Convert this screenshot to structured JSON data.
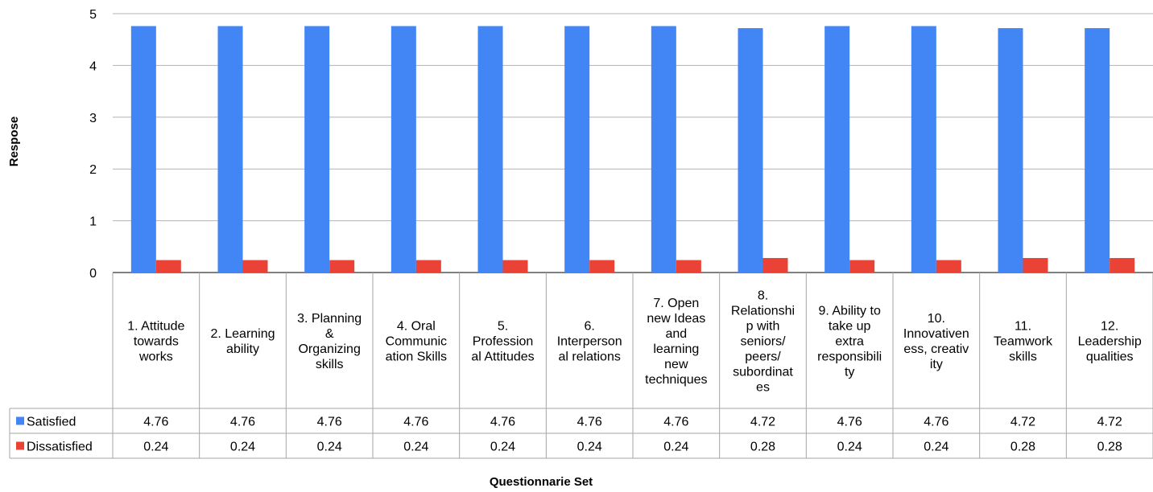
{
  "chart_data": {
    "type": "bar",
    "title": "",
    "xlabel": "Questionnarie Set",
    "ylabel": "Respose",
    "ylim": [
      0,
      5
    ],
    "yticks": [
      0,
      1,
      2,
      3,
      4,
      5
    ],
    "grid": true,
    "legend": "data-table-left",
    "categories": [
      "1. Attitude towards works",
      "2. Learning ability",
      "3. Planning & Organizing skills",
      "4. Oral Communication Skills",
      "5. Professional Attitudes",
      "6. Interpersonal relations",
      "7. Open new Ideas and learning new techniques",
      "8. Relationship with seniors/ peers/ subordinates",
      "9. Ability to take up extra responsibility",
      "10. Innovativeness, creativity",
      "11. Teamwork skills",
      "12. Leadership qualities"
    ],
    "category_lines": [
      [
        "1. Attitude",
        "towards",
        "works"
      ],
      [
        "2. Learning",
        "ability"
      ],
      [
        "3. Planning",
        "&",
        "Organizing",
        "skills"
      ],
      [
        "4. Oral",
        "Communic",
        "ation Skills"
      ],
      [
        "5.",
        "Profession",
        "al Attitudes"
      ],
      [
        "6.",
        "Interperson",
        "al relations"
      ],
      [
        "7. Open",
        "new Ideas",
        "and",
        "learning",
        "new",
        "techniques"
      ],
      [
        "8.",
        "Relationshi",
        "p with",
        "seniors/",
        "peers/",
        "subordinat",
        "es"
      ],
      [
        "9. Ability to",
        "take up",
        "extra",
        "responsibili",
        "ty"
      ],
      [
        "10.",
        "Innovativen",
        "ess, creativ",
        "ity"
      ],
      [
        "11.",
        "Teamwork",
        "skills"
      ],
      [
        "12.",
        "Leadership",
        "qualities"
      ]
    ],
    "series": [
      {
        "name": "Satisfied",
        "color": "#4285F4",
        "values": [
          4.76,
          4.76,
          4.76,
          4.76,
          4.76,
          4.76,
          4.76,
          4.72,
          4.76,
          4.76,
          4.72,
          4.72
        ],
        "labels": [
          "4.76",
          "4.76",
          "4.76",
          "4.76",
          "4.76",
          "4.76",
          "4.76",
          "4.72",
          "4.76",
          "4.76",
          "4.72",
          "4.72"
        ]
      },
      {
        "name": "Dissatisfied",
        "color": "#EA4335",
        "values": [
          0.24,
          0.24,
          0.24,
          0.24,
          0.24,
          0.24,
          0.24,
          0.28,
          0.24,
          0.24,
          0.28,
          0.28
        ],
        "labels": [
          "0.24",
          "0.24",
          "0.24",
          "0.24",
          "0.24",
          "0.24",
          "0.24",
          "0.28",
          "0.24",
          "0.24",
          "0.28",
          "0.28"
        ]
      }
    ]
  }
}
